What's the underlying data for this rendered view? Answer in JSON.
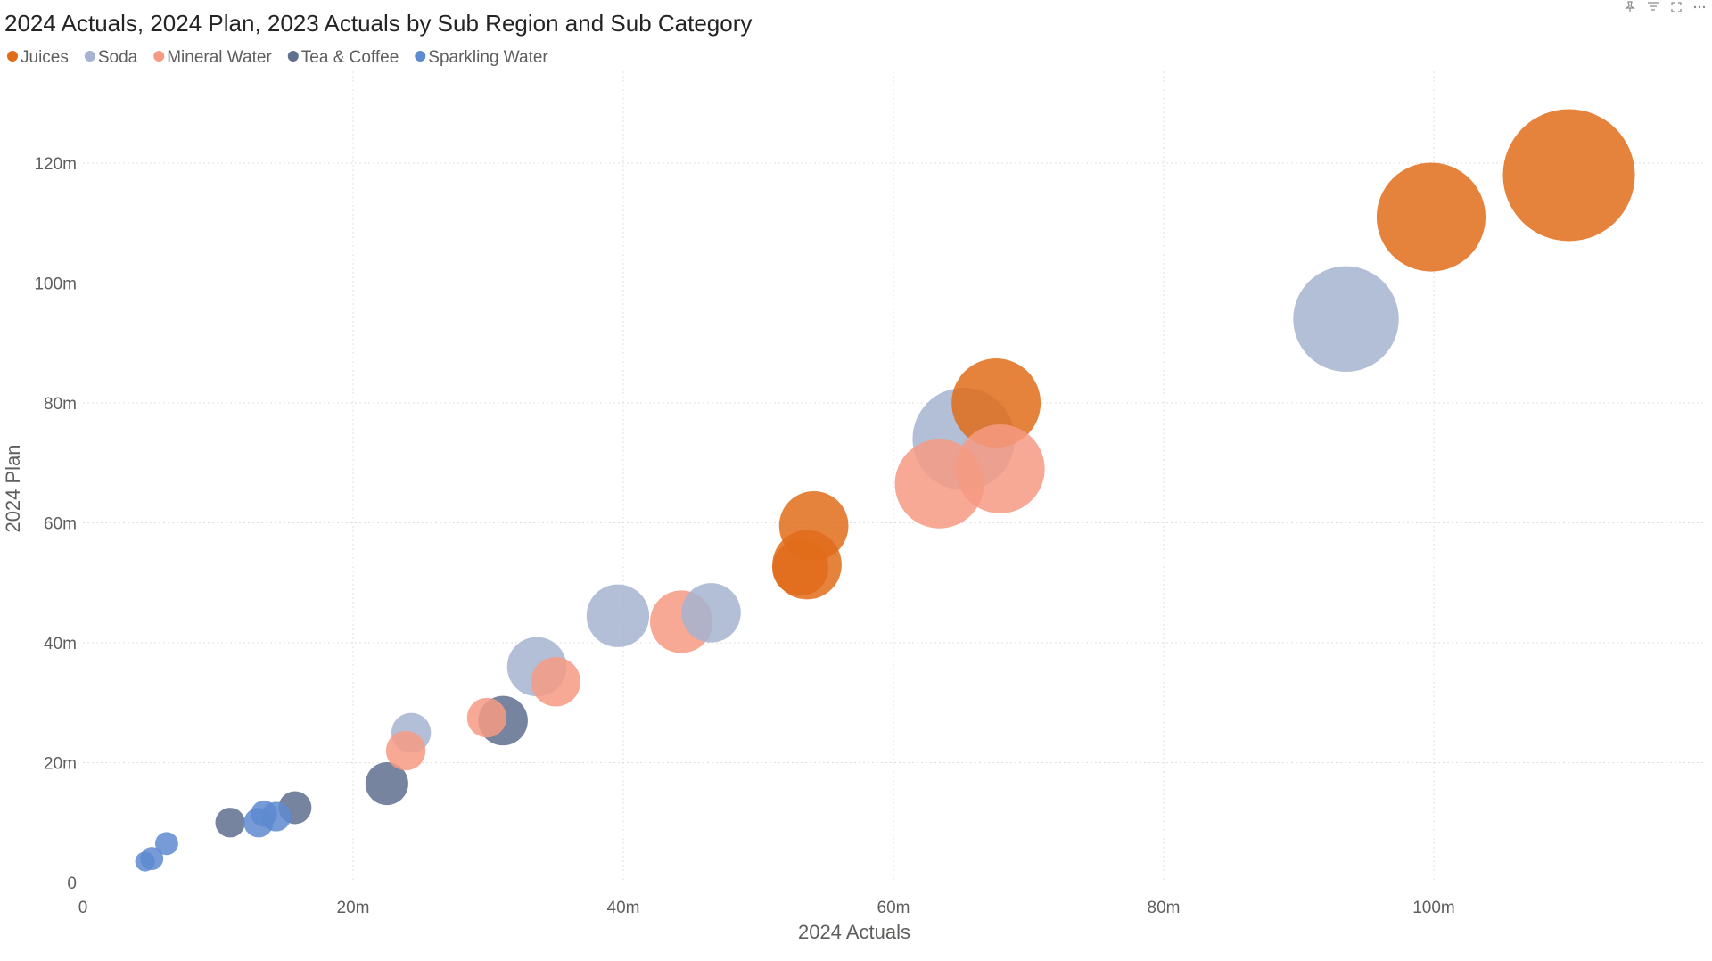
{
  "chart_data": {
    "type": "scatter",
    "title": "2024 Actuals, 2024 Plan, 2023 Actuals by Sub Region and Sub Category",
    "xlabel": "2024 Actuals",
    "ylabel": "2024 Plan",
    "size_measure": "2023 Actuals",
    "xlim": [
      0,
      120
    ],
    "ylim": [
      0,
      135
    ],
    "x_ticks": [
      {
        "value": 0,
        "label": "0"
      },
      {
        "value": 20,
        "label": "20m"
      },
      {
        "value": 40,
        "label": "40m"
      },
      {
        "value": 60,
        "label": "60m"
      },
      {
        "value": 80,
        "label": "80m"
      },
      {
        "value": 100,
        "label": "100m"
      }
    ],
    "y_ticks": [
      {
        "value": 0,
        "label": "0"
      },
      {
        "value": 20,
        "label": "20m"
      },
      {
        "value": 40,
        "label": "40m"
      },
      {
        "value": 60,
        "label": "60m"
      },
      {
        "value": 80,
        "label": "80m"
      },
      {
        "value": 100,
        "label": "100m"
      },
      {
        "value": 120,
        "label": "120m"
      }
    ],
    "grid": true,
    "legend_position": "top-left",
    "series": [
      {
        "name": "Juices",
        "color": "#e06c1a",
        "points": [
          {
            "x": 110,
            "y": 118,
            "size": 40
          },
          {
            "x": 99.8,
            "y": 111,
            "size": 33
          },
          {
            "x": 67.6,
            "y": 80,
            "size": 27
          },
          {
            "x": 54.1,
            "y": 59.5,
            "size": 21
          },
          {
            "x": 53.6,
            "y": 53,
            "size": 21
          },
          {
            "x": 53.1,
            "y": 52.5,
            "size": 17
          }
        ]
      },
      {
        "name": "Soda",
        "color": "#a5b4d0",
        "points": [
          {
            "x": 93.5,
            "y": 94,
            "size": 32
          },
          {
            "x": 65.2,
            "y": 74,
            "size": 31
          },
          {
            "x": 46.5,
            "y": 45,
            "size": 18
          },
          {
            "x": 39.6,
            "y": 44.5,
            "size": 19
          },
          {
            "x": 33.6,
            "y": 36,
            "size": 18
          },
          {
            "x": 24.3,
            "y": 25,
            "size": 12
          }
        ]
      },
      {
        "name": "Mineral Water",
        "color": "#f69a83",
        "points": [
          {
            "x": 67.9,
            "y": 69,
            "size": 27
          },
          {
            "x": 63.4,
            "y": 66.5,
            "size": 27
          },
          {
            "x": 44.3,
            "y": 43.5,
            "size": 19
          },
          {
            "x": 35,
            "y": 33.5,
            "size": 15
          },
          {
            "x": 29.9,
            "y": 27.5,
            "size": 12
          },
          {
            "x": 23.9,
            "y": 22,
            "size": 12
          }
        ]
      },
      {
        "name": "Tea & Coffee",
        "color": "#5f6f8e",
        "points": [
          {
            "x": 31.1,
            "y": 27,
            "size": 15
          },
          {
            "x": 22.5,
            "y": 16.5,
            "size": 13
          },
          {
            "x": 15.7,
            "y": 12.5,
            "size": 10
          },
          {
            "x": 10.9,
            "y": 10,
            "size": 9
          }
        ]
      },
      {
        "name": "Sparkling Water",
        "color": "#5e8ad0",
        "points": [
          {
            "x": 14.3,
            "y": 11,
            "size": 9
          },
          {
            "x": 13.4,
            "y": 11.5,
            "size": 8
          },
          {
            "x": 13,
            "y": 10,
            "size": 9
          },
          {
            "x": 6.2,
            "y": 6.5,
            "size": 7
          },
          {
            "x": 5.1,
            "y": 4,
            "size": 7
          },
          {
            "x": 4.6,
            "y": 3.5,
            "size": 6
          }
        ]
      }
    ]
  },
  "header_icons": [
    "pin-icon",
    "filter-icon",
    "focus-mode-icon",
    "more-options-icon"
  ]
}
